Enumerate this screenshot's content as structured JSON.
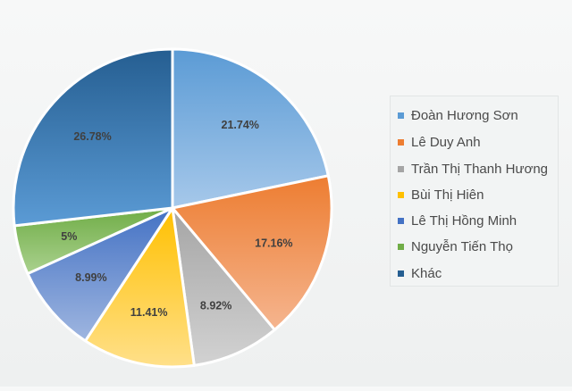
{
  "chart_data": {
    "type": "pie",
    "title": "",
    "legend_position": "right",
    "slices": [
      {
        "label": "Đoàn Hương Sơn",
        "value": 21.74,
        "display": "21.74%",
        "color": "#5b9bd5",
        "color_light": "#a6c8ea"
      },
      {
        "label": "Lê Duy Anh",
        "value": 17.16,
        "display": "17.16%",
        "color": "#ed7d31",
        "color_light": "#f5b58f"
      },
      {
        "label": "Trần Thị Thanh Hương",
        "value": 8.92,
        "display": "8.92%",
        "color": "#a5a5a5",
        "color_light": "#d2d2d2"
      },
      {
        "label": "Bùi Thị Hiên",
        "value": 11.41,
        "display": "11.41%",
        "color": "#ffc000",
        "color_light": "#ffe08a"
      },
      {
        "label": "Lê Thị Hồng Minh",
        "value": 8.99,
        "display": "8.99%",
        "color": "#4472c4",
        "color_light": "#9fb6e0"
      },
      {
        "label": "Nguyễn Tiến Thọ",
        "value": 5,
        "display": "5%",
        "color": "#70ad47",
        "color_light": "#aad18e"
      },
      {
        "label": "Khác",
        "value": 26.78,
        "display": "26.78%",
        "color": "#255e91",
        "color_light": "#5b9bd5"
      }
    ]
  }
}
